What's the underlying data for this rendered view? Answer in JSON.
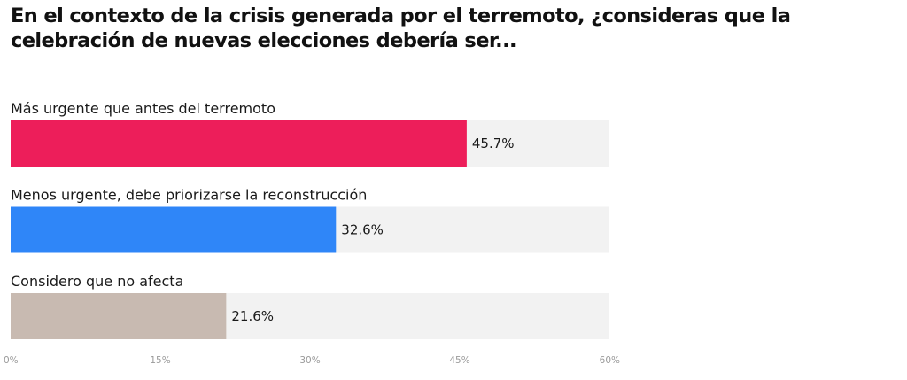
{
  "chart_data": {
    "type": "bar",
    "orientation": "horizontal",
    "title": "En el contexto de la crisis generada por el terremoto, ¿consideras que la celebración de nuevas elecciones debería ser...",
    "categories": [
      "Más urgente que antes del terremoto",
      "Menos urgente, debe priorizarse la reconstrucción",
      "Considero que no afecta"
    ],
    "values": [
      45.7,
      32.6,
      21.6
    ],
    "value_labels": [
      "45.7%",
      "32.6%",
      "21.6%"
    ],
    "colors": [
      "#ed1e5a",
      "#2f86f8",
      "#c8bab1"
    ],
    "track_color": "#f2f2f2",
    "xlim": [
      0,
      60
    ],
    "x_ticks": [
      0,
      15,
      30,
      45,
      60
    ],
    "x_tick_labels": [
      "0%",
      "15%",
      "30%",
      "45%",
      "60%"
    ],
    "grid": false
  }
}
